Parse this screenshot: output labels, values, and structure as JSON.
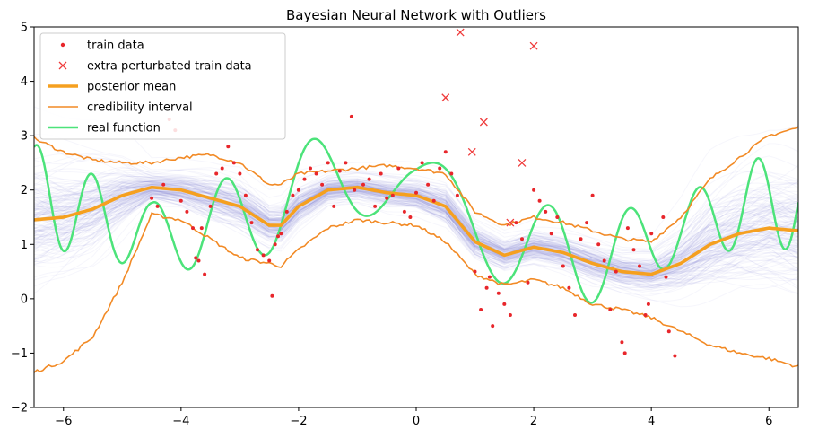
{
  "chart_data": {
    "type": "scatter",
    "title": "Bayesian Neural Network with Outliers",
    "xlabel": "",
    "ylabel": "",
    "xlim": [
      -6.5,
      6.5
    ],
    "ylim": [
      -2,
      5
    ],
    "xticks": [
      -6,
      -4,
      -2,
      0,
      2,
      4,
      6
    ],
    "xtick_labels": [
      "−6",
      "−4",
      "−2",
      "0",
      "2",
      "4",
      "6"
    ],
    "yticks": [
      -2,
      -1,
      0,
      1,
      2,
      3,
      4,
      5
    ],
    "ytick_labels": [
      "−2",
      "−1",
      "0",
      "1",
      "2",
      "3",
      "4",
      "5"
    ],
    "grid": false,
    "legend_position": "top-left",
    "colors": {
      "train_data": "#e8262b",
      "outliers": "#ef3b3b",
      "posterior_mean": "#f5a020",
      "credibility_interval": "#f28a25",
      "real_function": "#4ce37a",
      "posterior_samples": "#7b7fd6"
    },
    "series": [
      {
        "name": "train data",
        "kind": "points",
        "x": [
          -4.5,
          -4.4,
          -4.3,
          -4.2,
          -4.1,
          -4.0,
          -3.9,
          -3.8,
          -3.75,
          -3.7,
          -3.65,
          -3.6,
          -3.5,
          -3.4,
          -3.3,
          -3.2,
          -3.1,
          -3.0,
          -2.9,
          -2.8,
          -2.7,
          -2.6,
          -2.5,
          -2.45,
          -2.4,
          -2.35,
          -2.3,
          -2.2,
          -2.1,
          -2.0,
          -1.9,
          -1.8,
          -1.7,
          -1.6,
          -1.5,
          -1.4,
          -1.3,
          -1.2,
          -1.1,
          -1.05,
          -0.9,
          -0.8,
          -0.7,
          -0.6,
          -0.5,
          -0.4,
          -0.3,
          -0.2,
          -0.1,
          0.0,
          0.1,
          0.2,
          0.3,
          0.4,
          0.5,
          0.6,
          0.7,
          1.0,
          1.1,
          1.2,
          1.25,
          1.3,
          1.4,
          1.5,
          1.6,
          1.7,
          1.8,
          1.9,
          2.0,
          2.1,
          2.2,
          2.3,
          2.4,
          2.5,
          2.6,
          2.7,
          2.8,
          2.9,
          3.0,
          3.1,
          3.2,
          3.3,
          3.4,
          3.5,
          3.55,
          3.6,
          3.7,
          3.8,
          3.9,
          3.95,
          4.0,
          4.2,
          4.25,
          4.3,
          4.4
        ],
        "y": [
          1.85,
          1.7,
          2.1,
          3.3,
          3.1,
          1.8,
          1.6,
          1.3,
          0.75,
          0.7,
          1.3,
          0.45,
          1.7,
          2.3,
          2.4,
          2.8,
          2.5,
          2.3,
          1.9,
          1.4,
          0.9,
          0.8,
          0.7,
          0.05,
          1.0,
          1.15,
          1.2,
          1.6,
          1.9,
          2.0,
          2.2,
          2.4,
          2.3,
          2.1,
          2.5,
          1.7,
          2.35,
          2.5,
          3.35,
          2.0,
          2.1,
          2.2,
          1.7,
          2.3,
          1.85,
          1.9,
          2.4,
          1.6,
          1.5,
          1.95,
          2.5,
          2.1,
          1.8,
          2.4,
          2.7,
          2.3,
          1.9,
          0.5,
          -0.2,
          0.2,
          0.4,
          -0.5,
          0.1,
          -0.1,
          -0.3,
          1.4,
          1.1,
          0.3,
          2.0,
          1.8,
          1.6,
          1.2,
          1.5,
          0.6,
          0.2,
          -0.3,
          1.1,
          1.4,
          1.9,
          1.0,
          0.7,
          -0.2,
          0.5,
          -0.8,
          -1.0,
          1.3,
          0.9,
          0.6,
          -0.3,
          -0.1,
          1.2,
          1.5,
          0.4,
          -0.6,
          -1.05
        ]
      },
      {
        "name": "extra perturbated train data",
        "kind": "points",
        "x": [
          0.5,
          0.75,
          0.95,
          1.15,
          1.6,
          1.8,
          2.0
        ],
        "y": [
          3.7,
          4.9,
          2.7,
          3.25,
          1.4,
          2.5,
          4.65
        ]
      },
      {
        "name": "posterior mean",
        "kind": "line",
        "x": [
          -6.5,
          -6.0,
          -5.5,
          -5.0,
          -4.5,
          -4.0,
          -3.5,
          -3.0,
          -2.5,
          -2.3,
          -2.0,
          -1.5,
          -1.0,
          -0.5,
          0.0,
          0.5,
          1.0,
          1.5,
          2.0,
          2.5,
          3.0,
          3.5,
          4.0,
          4.5,
          5.0,
          5.5,
          6.0,
          6.5
        ],
        "y": [
          1.45,
          1.5,
          1.65,
          1.9,
          2.05,
          2.0,
          1.85,
          1.7,
          1.35,
          1.35,
          1.7,
          2.0,
          2.05,
          1.95,
          1.9,
          1.7,
          1.05,
          0.8,
          0.95,
          0.85,
          0.65,
          0.5,
          0.45,
          0.65,
          1.0,
          1.2,
          1.3,
          1.25
        ]
      },
      {
        "name": "credibility interval",
        "kind": "band_lines",
        "x": [
          -6.5,
          -6.0,
          -5.5,
          -5.0,
          -4.5,
          -4.0,
          -3.5,
          -3.0,
          -2.5,
          -2.3,
          -2.0,
          -1.5,
          -1.0,
          -0.5,
          0.0,
          0.5,
          1.0,
          1.5,
          2.0,
          2.5,
          3.0,
          3.5,
          4.0,
          4.5,
          5.0,
          5.5,
          6.0,
          6.5
        ],
        "upper": [
          2.95,
          2.7,
          2.55,
          2.5,
          2.5,
          2.6,
          2.65,
          2.5,
          2.1,
          2.1,
          2.3,
          2.35,
          2.4,
          2.45,
          2.4,
          2.3,
          1.6,
          1.35,
          1.5,
          1.4,
          1.25,
          1.1,
          1.05,
          1.5,
          2.2,
          2.6,
          3.0,
          3.15
        ],
        "lower": [
          -1.35,
          -1.15,
          -0.7,
          0.3,
          1.55,
          1.45,
          1.1,
          0.75,
          0.65,
          0.6,
          0.9,
          1.3,
          1.45,
          1.4,
          1.35,
          1.05,
          0.45,
          0.25,
          0.35,
          0.2,
          -0.1,
          -0.2,
          -0.35,
          -0.6,
          -0.85,
          -1.0,
          -1.1,
          -1.25
        ]
      },
      {
        "name": "real function",
        "kind": "line"
      }
    ],
    "legend": [
      "train data",
      "extra perturbated train data",
      "posterior mean",
      "credibility interval",
      "real function"
    ]
  }
}
